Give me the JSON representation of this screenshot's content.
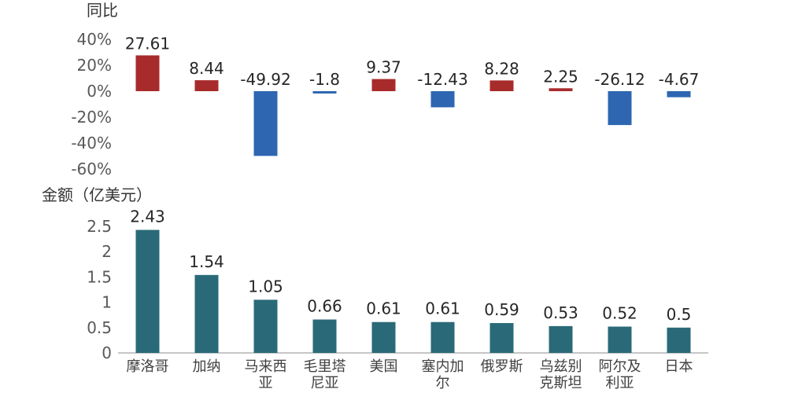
{
  "chart_data": [
    {
      "type": "bar",
      "ylabel": "同比",
      "categories": [
        "摩洛哥",
        "加纳",
        "马来西亚",
        "毛里塔尼亚",
        "美国",
        "塞内加尔",
        "俄罗斯",
        "乌兹别克斯坦",
        "阿尔及利亚",
        "日本"
      ],
      "values": [
        27.61,
        8.44,
        -49.92,
        -1.8,
        9.37,
        -12.43,
        8.28,
        2.25,
        -26.12,
        -4.67
      ],
      "value_labels": [
        "27.61",
        "8.44",
        "-49.92",
        "-1.8",
        "9.37",
        "-12.43",
        "8.28",
        "2.25",
        "-26.12",
        "-4.67"
      ],
      "ylim": [
        -60,
        40
      ],
      "yticks": [
        "40%",
        "20%",
        "0%",
        "-20%",
        "-40%",
        "-60%"
      ],
      "colors": {
        "positive": "#a82b2b",
        "negative": "#2e66b1"
      },
      "grid": false
    },
    {
      "type": "bar",
      "ylabel": "金额（亿美元）",
      "categories": [
        "摩洛哥",
        "加纳",
        "马来西亚",
        "毛里塔尼亚",
        "美国",
        "塞内加尔",
        "俄罗斯",
        "乌兹别克斯坦",
        "阿尔及利亚",
        "日本"
      ],
      "category_lines": [
        [
          "摩洛哥"
        ],
        [
          "加纳"
        ],
        [
          "马来西",
          "亚"
        ],
        [
          "毛里塔",
          "尼亚"
        ],
        [
          "美国"
        ],
        [
          "塞内加",
          "尔"
        ],
        [
          "俄罗斯"
        ],
        [
          "乌兹别",
          "克斯坦"
        ],
        [
          "阿尔及",
          "利亚"
        ],
        [
          "日本"
        ]
      ],
      "values": [
        2.43,
        1.54,
        1.05,
        0.66,
        0.61,
        0.61,
        0.59,
        0.53,
        0.52,
        0.5
      ],
      "value_labels": [
        "2.43",
        "1.54",
        "1.05",
        "0.66",
        "0.61",
        "0.61",
        "0.59",
        "0.53",
        "0.52",
        "0.5"
      ],
      "ylim": [
        0,
        2.5
      ],
      "yticks": [
        "2.5",
        "2",
        "1.5",
        "1",
        "0.5",
        "0"
      ],
      "colors": {
        "bar": "#2a6a78",
        "axis": "#8c8c8c"
      },
      "grid": false
    }
  ]
}
